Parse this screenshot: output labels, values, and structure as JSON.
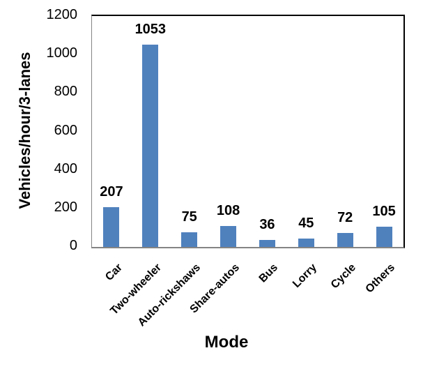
{
  "chart_data": {
    "type": "bar",
    "categories": [
      "Car",
      "Two-wheeler",
      "Auto-rickshaws",
      "Share-autos",
      "Bus",
      "Lorry",
      "Cycle",
      "Others"
    ],
    "values": [
      207,
      1053,
      75,
      108,
      36,
      45,
      72,
      105
    ],
    "data_labels": [
      "207",
      "1053",
      "75",
      "108",
      "36",
      "45",
      "72",
      "105"
    ],
    "title": "",
    "xlabel": "Mode",
    "ylabel": "Vehicles/hour/3-lanes",
    "ylim": [
      0,
      1200
    ],
    "yticks": [
      0,
      200,
      400,
      600,
      800,
      1000,
      1200
    ],
    "grid": false,
    "legend": "none",
    "bar_color": "#4F81BD",
    "axis_line_color": "#848484",
    "plot_border_color": "#000000",
    "label_color": "#000000"
  }
}
